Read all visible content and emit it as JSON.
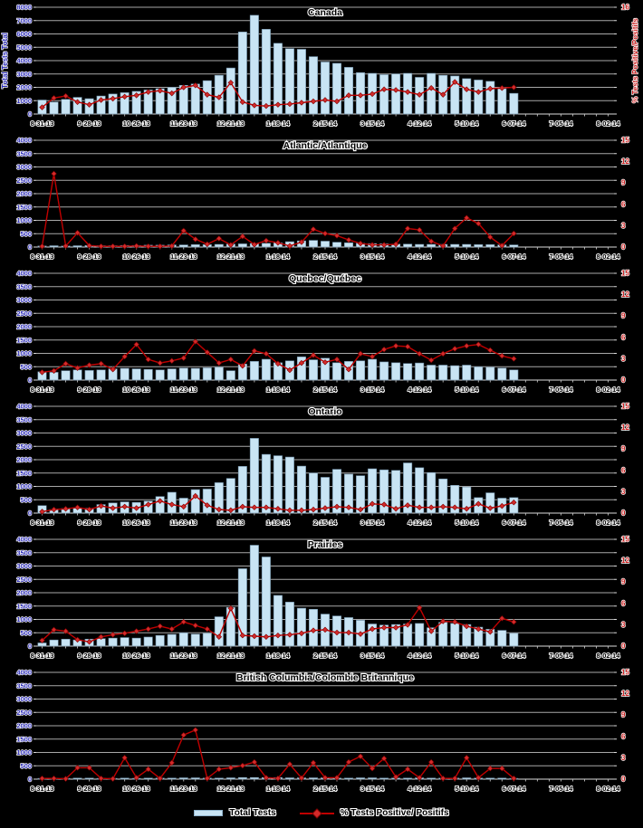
{
  "figure": {
    "background": "#000000",
    "bar_color": "#C8E4F4",
    "bar_border": "#6E8EA6",
    "line_color": "#C00000",
    "marker_color": "#D42A2A",
    "marker_border": "#7A0000",
    "grid_color": "#A8A8A8",
    "baseline_color": "#DCDCDC",
    "left_axis_color": "#2B2BB8",
    "right_axis_color": "#CC2222",
    "text_color": "#000000",
    "halo_color": "#FFFFFF"
  },
  "legend": {
    "total_tests_label": "Total Tests",
    "pct_positive_label": "% Tests Positive/ Positifs"
  },
  "x_axis": {
    "tick_labels": [
      "8-31-13",
      "9-28-13",
      "10-26-13",
      "11-23-13",
      "12-21-13",
      "1-18-14",
      "2-15-14",
      "3-15-14",
      "4-12-14",
      "5-10-14",
      "6-07-14",
      "7-05-14",
      "8-02-14"
    ],
    "total_weeks": 49,
    "label_interval": 4
  },
  "chart_data": [
    {
      "type": "bar+line",
      "title": "Canada",
      "left_axis": {
        "title": "Total Tests Total",
        "max": 8000,
        "step": 1000
      },
      "right_axis": {
        "title": "% Tests Positive/Positifs",
        "max": 16,
        "tick_values": [
          16
        ]
      },
      "series": [
        {
          "name": "Total Tests",
          "type": "bar",
          "axis": "left",
          "values": [
            1050,
            900,
            1100,
            1250,
            1150,
            1350,
            1500,
            1600,
            1700,
            1800,
            1900,
            2000,
            2150,
            2250,
            2500,
            2900,
            3450,
            6150,
            7400,
            6350,
            5300,
            4900,
            4850,
            4300,
            3900,
            3800,
            3500,
            3100,
            3050,
            2950,
            3000,
            3050,
            2750,
            3050,
            2900,
            2850,
            2650,
            2550,
            2450,
            1900,
            1550
          ]
        },
        {
          "name": "% Tests Positive/ Positifs",
          "type": "line",
          "axis": "right",
          "values": [
            1.0,
            2.4,
            2.7,
            1.8,
            1.4,
            2.1,
            2.3,
            2.6,
            2.8,
            3.3,
            3.5,
            3.1,
            4.0,
            4.3,
            2.9,
            2.5,
            4.7,
            1.8,
            1.3,
            1.2,
            1.4,
            1.5,
            1.7,
            1.9,
            2.1,
            1.9,
            2.8,
            2.8,
            3.0,
            3.7,
            3.6,
            3.3,
            2.9,
            3.9,
            2.9,
            4.8,
            3.7,
            3.3,
            3.8,
            3.9,
            4.0
          ]
        }
      ]
    },
    {
      "type": "bar+line",
      "title": "Atlantic/Atlantique",
      "left_axis": {
        "title": "",
        "max": 4000,
        "step": 500
      },
      "right_axis": {
        "title": "",
        "max": 15,
        "tick_values": [
          0,
          3,
          6,
          9,
          12,
          15
        ]
      },
      "series": [
        {
          "name": "Total Tests",
          "type": "bar",
          "axis": "left",
          "values": [
            40,
            50,
            40,
            50,
            60,
            50,
            50,
            60,
            60,
            70,
            70,
            80,
            80,
            90,
            90,
            100,
            110,
            120,
            130,
            140,
            160,
            200,
            230,
            250,
            220,
            180,
            160,
            140,
            130,
            120,
            110,
            110,
            100,
            100,
            100,
            100,
            100,
            90,
            90,
            80,
            80
          ]
        },
        {
          "name": "% Tests Positive/ Positifs",
          "type": "line",
          "axis": "right",
          "values": [
            0.1,
            10.3,
            0.15,
            2.0,
            0.2,
            0.1,
            0.1,
            0.1,
            0.15,
            0.1,
            0.1,
            0.15,
            2.3,
            1.1,
            0.4,
            1.2,
            0.3,
            1.5,
            0.35,
            0.9,
            0.6,
            0.15,
            0.7,
            2.5,
            1.9,
            1.6,
            1.0,
            0.5,
            0.3,
            0.3,
            0.4,
            2.6,
            2.4,
            0.8,
            0.15,
            2.6,
            4.1,
            3.3,
            1.4,
            0.2,
            1.9
          ]
        }
      ]
    },
    {
      "type": "bar+line",
      "title": "Quebec/Québec",
      "left_axis": {
        "title": "",
        "max": 4000,
        "step": 500
      },
      "right_axis": {
        "title": "",
        "max": 15,
        "tick_values": [
          0,
          3,
          6,
          9,
          12,
          15
        ]
      },
      "series": [
        {
          "name": "Total Tests",
          "type": "bar",
          "axis": "left",
          "values": [
            310,
            290,
            350,
            380,
            360,
            380,
            420,
            440,
            420,
            400,
            380,
            420,
            450,
            440,
            460,
            480,
            350,
            600,
            700,
            780,
            650,
            720,
            870,
            760,
            820,
            650,
            700,
            720,
            780,
            680,
            650,
            620,
            640,
            560,
            560,
            540,
            560,
            500,
            480,
            450,
            380
          ]
        },
        {
          "name": "% Tests Positive/ Positifs",
          "type": "line",
          "axis": "right",
          "values": [
            1.1,
            1.3,
            2.3,
            1.7,
            2.1,
            2.3,
            1.5,
            3.3,
            5.0,
            2.9,
            2.4,
            2.7,
            3.1,
            5.4,
            3.9,
            2.4,
            2.9,
            2.0,
            4.1,
            3.7,
            2.3,
            1.4,
            2.4,
            3.5,
            2.5,
            2.9,
            1.5,
            3.7,
            3.3,
            4.3,
            4.8,
            4.7,
            3.7,
            2.8,
            3.7,
            4.4,
            4.8,
            5.0,
            4.2,
            3.4,
            3.0
          ]
        }
      ]
    },
    {
      "type": "bar+line",
      "title": "Ontario",
      "left_axis": {
        "title": "",
        "max": 4000,
        "step": 500
      },
      "right_axis": {
        "title": "",
        "max": 15,
        "tick_values": [
          0,
          3,
          6,
          9,
          12,
          15
        ]
      },
      "series": [
        {
          "name": "Total Tests",
          "type": "bar",
          "axis": "left",
          "values": [
            280,
            130,
            170,
            190,
            180,
            320,
            380,
            420,
            400,
            450,
            620,
            780,
            560,
            880,
            900,
            1140,
            1300,
            1750,
            2800,
            2200,
            2150,
            2100,
            1760,
            1500,
            1340,
            1640,
            1460,
            1400,
            1660,
            1620,
            1600,
            1880,
            1700,
            1520,
            1280,
            1040,
            980,
            580,
            760,
            560,
            580
          ]
        },
        {
          "name": "% Tests Positive/ Positifs",
          "type": "line",
          "axis": "right",
          "values": [
            0.2,
            0.5,
            0.6,
            0.8,
            0.5,
            1.0,
            0.7,
            0.9,
            0.7,
            1.2,
            1.7,
            1.2,
            0.9,
            2.4,
            1.1,
            0.5,
            0.4,
            0.9,
            0.8,
            0.8,
            0.6,
            0.4,
            0.4,
            0.5,
            0.7,
            0.9,
            0.8,
            0.5,
            1.3,
            1.2,
            0.6,
            1.1,
            0.8,
            0.8,
            0.9,
            0.8,
            0.6,
            1.3,
            0.7,
            1.0,
            1.5
          ]
        }
      ]
    },
    {
      "type": "bar+line",
      "title": "Prairies",
      "left_axis": {
        "title": "",
        "max": 4000,
        "step": 500
      },
      "right_axis": {
        "title": "",
        "max": 15,
        "tick_values": [
          0,
          3,
          6,
          9,
          12,
          15
        ]
      },
      "series": [
        {
          "name": "Total Tests",
          "type": "bar",
          "axis": "left",
          "values": [
            120,
            230,
            260,
            230,
            260,
            280,
            300,
            320,
            300,
            340,
            400,
            440,
            500,
            450,
            480,
            1100,
            1450,
            2900,
            3780,
            3340,
            1900,
            1650,
            1420,
            1380,
            1200,
            1130,
            1070,
            970,
            830,
            790,
            810,
            830,
            850,
            690,
            890,
            850,
            810,
            710,
            630,
            590,
            480
          ]
        },
        {
          "name": "% Tests Positive/ Positifs",
          "type": "line",
          "axis": "right",
          "values": [
            0.8,
            2.3,
            2.1,
            0.9,
            0.6,
            1.3,
            1.6,
            1.8,
            2.1,
            2.4,
            2.8,
            2.4,
            3.4,
            2.9,
            2.4,
            1.3,
            5.3,
            1.5,
            1.4,
            1.3,
            1.5,
            1.6,
            1.8,
            2.2,
            2.3,
            1.9,
            1.9,
            1.7,
            2.4,
            2.6,
            2.6,
            3.0,
            5.4,
            2.1,
            3.5,
            3.4,
            2.8,
            2.4,
            2.0,
            3.9,
            3.4
          ]
        }
      ]
    },
    {
      "type": "bar+line",
      "title": "British Columbia/Colombie Britannique",
      "left_axis": {
        "title": "",
        "max": 4000,
        "step": 500
      },
      "right_axis": {
        "title": "",
        "max": 15,
        "tick_values": [
          0,
          3,
          6,
          9,
          12,
          15
        ]
      },
      "series": [
        {
          "name": "Total Tests",
          "type": "bar",
          "axis": "left",
          "values": [
            30,
            30,
            30,
            40,
            40,
            30,
            30,
            40,
            30,
            40,
            40,
            40,
            50,
            50,
            40,
            40,
            50,
            60,
            60,
            60,
            60,
            50,
            50,
            50,
            50,
            40,
            40,
            50,
            50,
            40,
            40,
            40,
            50,
            40,
            40,
            40,
            50,
            40,
            40,
            40,
            30
          ]
        },
        {
          "name": "% Tests Positive/ Positifs",
          "type": "line",
          "axis": "right",
          "values": [
            0.1,
            0.1,
            0.05,
            1.6,
            1.6,
            0.1,
            0.05,
            3.0,
            0.2,
            1.4,
            0.1,
            2.3,
            6.2,
            6.9,
            0.1,
            1.4,
            1.6,
            1.9,
            2.4,
            0.2,
            0.1,
            2.1,
            0.15,
            2.3,
            0.2,
            0.2,
            2.4,
            3.2,
            1.5,
            2.9,
            0.3,
            1.4,
            0.2,
            2.4,
            0.1,
            0.1,
            3.0,
            0.2,
            1.5,
            1.5,
            0.1
          ]
        }
      ]
    }
  ]
}
